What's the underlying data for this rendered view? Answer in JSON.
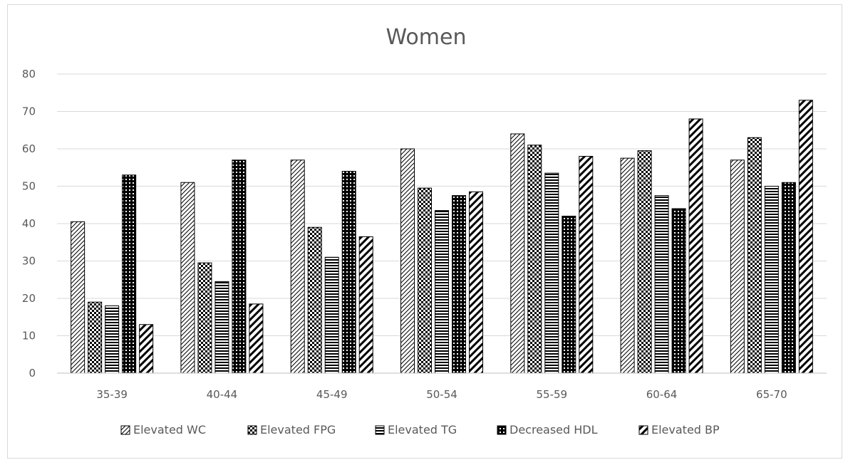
{
  "chart_data": {
    "type": "bar",
    "title": "Women",
    "xlabel": "",
    "ylabel": "",
    "ylim": [
      0,
      80
    ],
    "yticks": [
      0,
      10,
      20,
      30,
      40,
      50,
      60,
      70,
      80
    ],
    "grid": true,
    "legend_position": "bottom",
    "categories": [
      "35-39",
      "40-44",
      "45-49",
      "50-54",
      "55-59",
      "60-64",
      "65-70"
    ],
    "series": [
      {
        "name": "Elevated WC",
        "pattern": "light-diagonal",
        "values": [
          40.5,
          51,
          57,
          60,
          64,
          57.5,
          57
        ]
      },
      {
        "name": "Elevated FPG",
        "pattern": "checker",
        "values": [
          19,
          29.5,
          39,
          49.5,
          61,
          59.5,
          63
        ]
      },
      {
        "name": "Elevated TG",
        "pattern": "horizontal-lines",
        "values": [
          18,
          24.5,
          31,
          43.5,
          53.5,
          47.5,
          50
        ]
      },
      {
        "name": "Decreased HDL",
        "pattern": "dark-dots",
        "values": [
          53,
          57,
          54,
          47.5,
          42,
          44,
          51
        ]
      },
      {
        "name": "Elevated BP",
        "pattern": "wide-diagonal",
        "values": [
          13,
          18.5,
          36.5,
          48.5,
          58,
          68,
          73
        ]
      }
    ]
  }
}
